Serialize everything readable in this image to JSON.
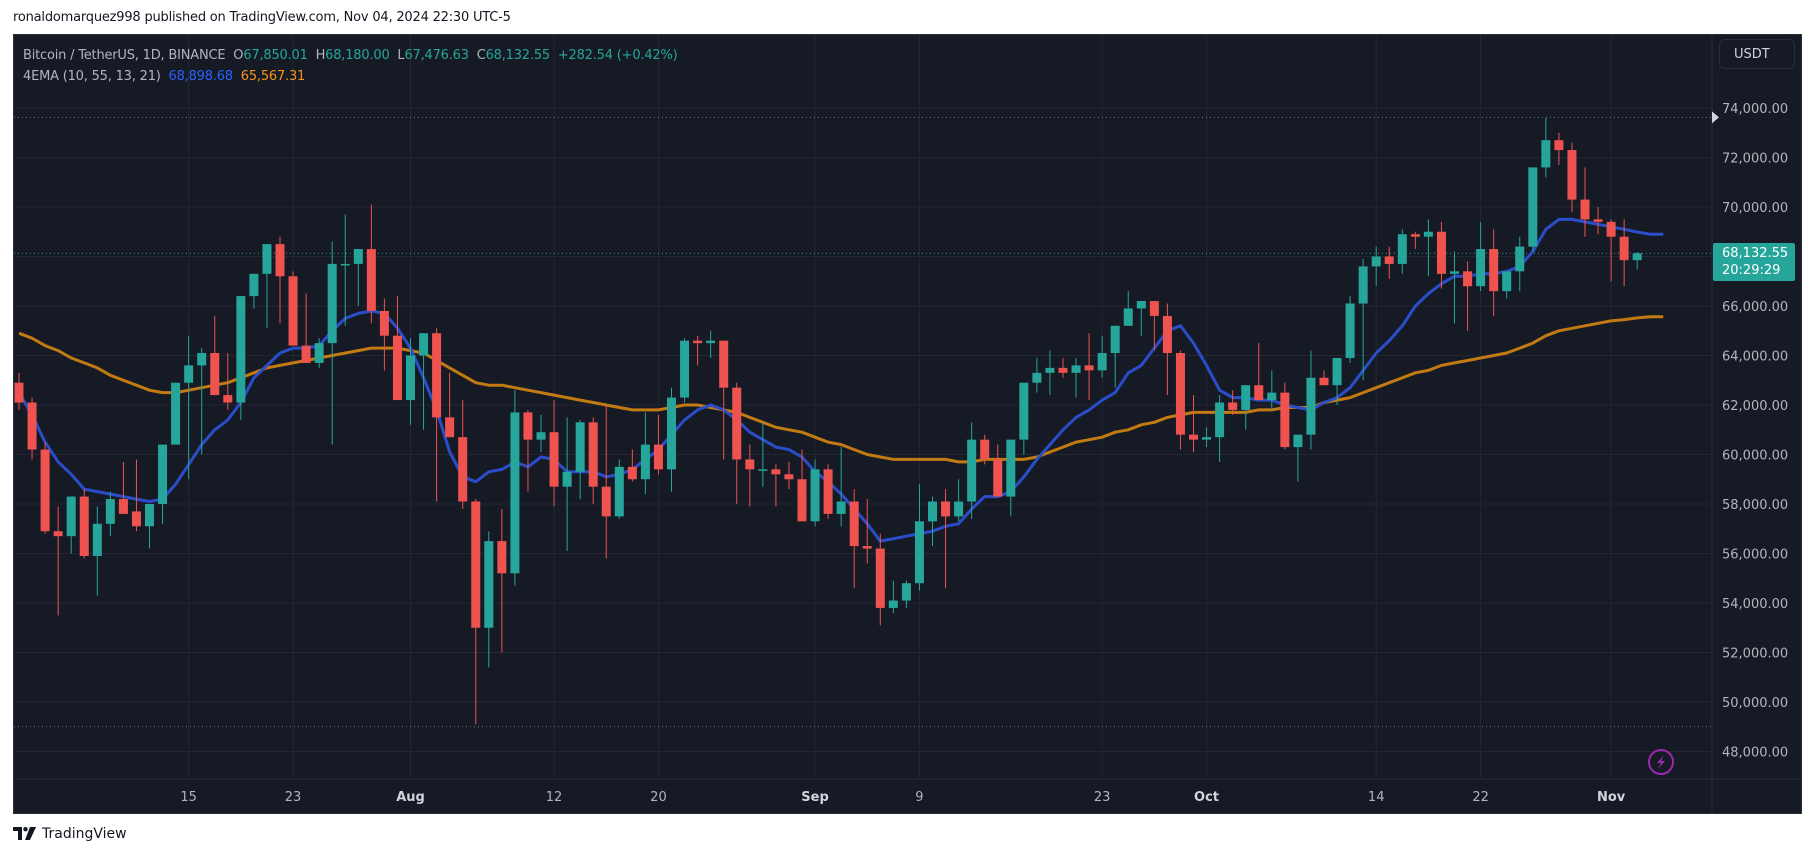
{
  "header": {
    "published_line": "ronaldomarquez998 published on TradingView.com, Nov 04, 2024 22:30 UTC-5"
  },
  "legend": {
    "symbol": "Bitcoin / TetherUS, 1D, BINANCE",
    "open_label": "O",
    "open": "67,850.01",
    "high_label": "H",
    "high": "68,180.00",
    "low_label": "L",
    "low": "67,476.63",
    "close_label": "C",
    "close": "68,132.55",
    "change": "+282.54 (+0.42%)",
    "indicator": "4EMA (10, 55, 13, 21)",
    "ema_fast_value": "68,898.68",
    "ema_slow_value": "65,567.31"
  },
  "price_axis": {
    "currency_button": "USDT",
    "last_price": "68,132.55",
    "countdown": "20:29:29"
  },
  "footer": {
    "brand": "TradingView"
  },
  "colors": {
    "background": "#161a25",
    "grid": "#242733",
    "up": "#26a69a",
    "down": "#ef5350",
    "ema_fast": "#2a4ec9",
    "ema_slow": "#c27a12",
    "alert_icon": "#9c27b0"
  },
  "chart_data": {
    "type": "candlestick",
    "title": "Bitcoin / TetherUS, 1D, BINANCE",
    "xlabel": "",
    "ylabel": "USDT",
    "ylim": [
      47000,
      75500
    ],
    "y_ticks": [
      48000,
      50000,
      52000,
      54000,
      56000,
      58000,
      60000,
      62000,
      64000,
      66000,
      68000,
      70000,
      72000,
      74000
    ],
    "y_tick_labels": [
      "48,000.00",
      "50,000.00",
      "52,000.00",
      "54,000.00",
      "56,000.00",
      "58,000.00",
      "60,000.00",
      "62,000.00",
      "64,000.00",
      "66,000.00",
      "68,000.00",
      "70,000.00",
      "72,000.00",
      "74,000.00"
    ],
    "x_ticks": [
      {
        "label": "15",
        "index": 13,
        "bold": false
      },
      {
        "label": "23",
        "index": 21,
        "bold": false
      },
      {
        "label": "Aug",
        "index": 30,
        "bold": true
      },
      {
        "label": "12",
        "index": 41,
        "bold": false
      },
      {
        "label": "20",
        "index": 49,
        "bold": false
      },
      {
        "label": "Sep",
        "index": 61,
        "bold": true
      },
      {
        "label": "9",
        "index": 69,
        "bold": false
      },
      {
        "label": "23",
        "index": 83,
        "bold": false
      },
      {
        "label": "Oct",
        "index": 91,
        "bold": true
      },
      {
        "label": "14",
        "index": 104,
        "bold": false
      },
      {
        "label": "22",
        "index": 112,
        "bold": false
      },
      {
        "label": "Nov",
        "index": 122,
        "bold": true
      }
    ],
    "date_range": [
      "2024-07-02",
      "2024-11-05"
    ],
    "horizontal_markers": [
      {
        "name": "high-marker",
        "price": 73620
      },
      {
        "name": "last-price",
        "price": 68132.55
      },
      {
        "name": "low-marker",
        "price": 49000
      }
    ],
    "candles": [
      [
        62900,
        63300,
        61800,
        62100
      ],
      [
        62100,
        62300,
        59800,
        60200
      ],
      [
        60200,
        60500,
        56800,
        56900
      ],
      [
        56900,
        57900,
        53500,
        56700
      ],
      [
        56700,
        58200,
        56000,
        58300
      ],
      [
        58300,
        58600,
        55800,
        55900
      ],
      [
        55900,
        57900,
        54300,
        57200
      ],
      [
        57200,
        58500,
        56700,
        58200
      ],
      [
        58200,
        59700,
        57900,
        57600
      ],
      [
        57700,
        59800,
        56900,
        57100
      ],
      [
        57100,
        57700,
        56200,
        58000
      ],
      [
        58000,
        59200,
        57200,
        60400
      ],
      [
        60400,
        62600,
        60500,
        62900
      ],
      [
        62900,
        64800,
        59000,
        63600
      ],
      [
        63600,
        64300,
        60000,
        64100
      ],
      [
        64100,
        65600,
        63300,
        62400
      ],
      [
        62400,
        64100,
        61800,
        62100
      ],
      [
        62100,
        66300,
        61400,
        66400
      ],
      [
        66400,
        67300,
        65900,
        67300
      ],
      [
        67300,
        68400,
        65100,
        68500
      ],
      [
        68500,
        68800,
        65300,
        67200
      ],
      [
        67200,
        67400,
        64600,
        64400
      ],
      [
        64400,
        66500,
        63900,
        63700
      ],
      [
        63700,
        64700,
        63500,
        64500
      ],
      [
        64500,
        68600,
        60400,
        67700
      ],
      [
        67700,
        69700,
        65200,
        67700
      ],
      [
        67700,
        68200,
        66000,
        68300
      ],
      [
        68300,
        70100,
        65300,
        65800
      ],
      [
        65800,
        66300,
        63400,
        64800
      ],
      [
        64800,
        66400,
        62300,
        62200
      ],
      [
        62200,
        64700,
        61200,
        64000
      ],
      [
        64000,
        64700,
        61000,
        64900
      ],
      [
        64900,
        65100,
        58100,
        61500
      ],
      [
        61500,
        63300,
        61400,
        60700
      ],
      [
        60700,
        62200,
        57800,
        58100
      ],
      [
        58100,
        58200,
        49100,
        53000
      ],
      [
        53000,
        56900,
        51400,
        56500
      ],
      [
        56500,
        57800,
        52000,
        55200
      ],
      [
        55200,
        62600,
        54700,
        61700
      ],
      [
        61700,
        61800,
        58500,
        60600
      ],
      [
        60600,
        61600,
        60100,
        60900
      ],
      [
        60900,
        62200,
        57900,
        58700
      ],
      [
        58700,
        61500,
        56100,
        59300
      ],
      [
        59300,
        61400,
        58200,
        61300
      ],
      [
        61300,
        61500,
        58000,
        58700
      ],
      [
        58700,
        62000,
        55800,
        57500
      ],
      [
        57500,
        59800,
        57400,
        59500
      ],
      [
        59500,
        60200,
        58900,
        59000
      ],
      [
        59000,
        61700,
        58400,
        60400
      ],
      [
        60400,
        61600,
        59200,
        59400
      ],
      [
        59400,
        62700,
        58500,
        62300
      ],
      [
        62300,
        64700,
        62100,
        64600
      ],
      [
        64600,
        64800,
        63600,
        64500
      ],
      [
        64500,
        65000,
        63900,
        64600
      ],
      [
        64600,
        64500,
        59800,
        62700
      ],
      [
        62700,
        62900,
        58000,
        59800
      ],
      [
        59800,
        60400,
        57900,
        59400
      ],
      [
        59400,
        61300,
        58700,
        59400
      ],
      [
        59400,
        59600,
        57900,
        59200
      ],
      [
        59200,
        59700,
        58600,
        59000
      ],
      [
        59000,
        60200,
        57300,
        57300
      ],
      [
        57300,
        59800,
        57100,
        59400
      ],
      [
        59400,
        59600,
        57400,
        57600
      ],
      [
        57600,
        60300,
        57100,
        58100
      ],
      [
        58100,
        58600,
        54600,
        56300
      ],
      [
        56300,
        58200,
        55600,
        56200
      ],
      [
        56200,
        56800,
        53100,
        53800
      ],
      [
        53800,
        54900,
        53600,
        54100
      ],
      [
        54100,
        54900,
        53800,
        54800
      ],
      [
        54800,
        58800,
        54500,
        57300
      ],
      [
        57300,
        58300,
        56300,
        58100
      ],
      [
        58100,
        58600,
        54600,
        57500
      ],
      [
        57500,
        59000,
        57300,
        58100
      ],
      [
        58100,
        61300,
        57400,
        60600
      ],
      [
        60600,
        60800,
        59600,
        59800
      ],
      [
        59800,
        60400,
        58400,
        58300
      ],
      [
        58300,
        60500,
        57500,
        60600
      ],
      [
        60600,
        62100,
        60000,
        62900
      ],
      [
        62900,
        63900,
        62500,
        63300
      ],
      [
        63300,
        64200,
        62400,
        63500
      ],
      [
        63500,
        63900,
        63100,
        63300
      ],
      [
        63300,
        63900,
        62300,
        63600
      ],
      [
        63600,
        64900,
        62200,
        63400
      ],
      [
        63400,
        64800,
        63100,
        64100
      ],
      [
        64100,
        64500,
        62700,
        65200
      ],
      [
        65200,
        66600,
        65400,
        65900
      ],
      [
        65900,
        66000,
        64800,
        66200
      ],
      [
        66200,
        66200,
        64200,
        65600
      ],
      [
        65600,
        66100,
        62400,
        64100
      ],
      [
        64100,
        64200,
        60200,
        60800
      ],
      [
        60800,
        62400,
        60100,
        60600
      ],
      [
        60600,
        61100,
        60300,
        60700
      ],
      [
        60700,
        62400,
        59700,
        62100
      ],
      [
        62100,
        62600,
        61600,
        61800
      ],
      [
        61800,
        62400,
        61000,
        62800
      ],
      [
        62800,
        64500,
        62400,
        62200
      ],
      [
        62200,
        63400,
        61800,
        62500
      ],
      [
        62500,
        62900,
        60200,
        60300
      ],
      [
        60300,
        60500,
        58900,
        60800
      ],
      [
        60800,
        64200,
        60200,
        63100
      ],
      [
        63100,
        63400,
        62900,
        62800
      ],
      [
        62800,
        63400,
        62000,
        63900
      ],
      [
        63900,
        66400,
        63700,
        66100
      ],
      [
        66100,
        67900,
        63000,
        67600
      ],
      [
        67600,
        68400,
        66800,
        68000
      ],
      [
        68000,
        68400,
        67100,
        67700
      ],
      [
        67700,
        69100,
        67300,
        68900
      ],
      [
        68900,
        69000,
        68300,
        68800
      ],
      [
        68800,
        69500,
        67200,
        69000
      ],
      [
        69000,
        69400,
        66700,
        67300
      ],
      [
        67300,
        68200,
        65300,
        67400
      ],
      [
        67400,
        67800,
        65000,
        66800
      ],
      [
        66800,
        69400,
        66600,
        68300
      ],
      [
        68300,
        69100,
        65600,
        66600
      ],
      [
        66600,
        67200,
        66300,
        67400
      ],
      [
        67400,
        68800,
        66600,
        68400
      ],
      [
        68400,
        70200,
        68200,
        71600
      ],
      [
        71600,
        73600,
        71200,
        72700
      ],
      [
        72700,
        73000,
        71700,
        72300
      ],
      [
        72300,
        72600,
        69800,
        70300
      ],
      [
        70300,
        71600,
        68800,
        69500
      ],
      [
        69500,
        70000,
        68900,
        69400
      ],
      [
        69400,
        69500,
        67000,
        68800
      ],
      [
        68800,
        69500,
        66800,
        67850
      ],
      [
        67850,
        68180,
        67476,
        68132
      ]
    ],
    "series": [
      {
        "name": "EMA 10 (fast)",
        "color": "#2a4ec9",
        "last": 68898.68,
        "values": [
          62500,
          61600,
          60500,
          59700,
          59200,
          58600,
          58500,
          58400,
          58300,
          58200,
          58100,
          58200,
          58800,
          59600,
          60400,
          61000,
          61400,
          62100,
          63100,
          63600,
          64100,
          64300,
          64300,
          64400,
          65000,
          65500,
          65700,
          65800,
          65700,
          65100,
          64300,
          63100,
          61800,
          60100,
          59100,
          58900,
          59300,
          59400,
          59700,
          59500,
          59900,
          59800,
          59300,
          59300,
          59300,
          59100,
          59200,
          59400,
          59800,
          60200,
          60800,
          61400,
          61800,
          62000,
          61800,
          61400,
          60900,
          60600,
          60300,
          60200,
          59900,
          59300,
          58900,
          58400,
          57800,
          57200,
          56500,
          56600,
          56700,
          56800,
          56900,
          57100,
          57200,
          57800,
          58300,
          58300,
          58500,
          59100,
          59800,
          60400,
          61000,
          61500,
          61800,
          62200,
          62500,
          63300,
          63600,
          64300,
          65000,
          65200,
          64500,
          63600,
          62600,
          62300,
          62300,
          62200,
          62200,
          62000,
          61900,
          61800,
          62100,
          62300,
          62700,
          63400,
          64100,
          64600,
          65200,
          66000,
          66500,
          66900,
          67200,
          67200,
          67300,
          67300,
          67400,
          67600,
          68200,
          69100,
          69500,
          69500,
          69400,
          69300,
          69200,
          69100,
          68990,
          68898,
          68899
        ]
      },
      {
        "name": "EMA 55 (slow)",
        "color": "#c27a12",
        "last": 65567.31,
        "values": [
          64900,
          64700,
          64400,
          64200,
          63900,
          63700,
          63500,
          63200,
          63000,
          62800,
          62600,
          62500,
          62500,
          62600,
          62700,
          62800,
          62900,
          63100,
          63300,
          63500,
          63600,
          63700,
          63800,
          63900,
          64000,
          64100,
          64200,
          64300,
          64300,
          64300,
          64200,
          64100,
          63800,
          63500,
          63200,
          62900,
          62800,
          62800,
          62700,
          62600,
          62500,
          62400,
          62300,
          62200,
          62100,
          62000,
          61900,
          61800,
          61800,
          61800,
          61900,
          62000,
          62000,
          61900,
          61800,
          61700,
          61500,
          61300,
          61100,
          61000,
          60900,
          60700,
          60500,
          60400,
          60200,
          60000,
          59900,
          59800,
          59800,
          59800,
          59800,
          59800,
          59700,
          59700,
          59800,
          59800,
          59800,
          59800,
          59900,
          60100,
          60300,
          60500,
          60600,
          60700,
          60900,
          61000,
          61200,
          61300,
          61500,
          61600,
          61700,
          61700,
          61700,
          61700,
          61700,
          61800,
          61800,
          61900,
          61900,
          61900,
          62100,
          62200,
          62300,
          62500,
          62700,
          62900,
          63100,
          63300,
          63400,
          63600,
          63700,
          63800,
          63900,
          64000,
          64100,
          64300,
          64500,
          64800,
          65000,
          65100,
          65200,
          65300,
          65400,
          65450,
          65520,
          65567,
          65567
        ]
      }
    ]
  }
}
